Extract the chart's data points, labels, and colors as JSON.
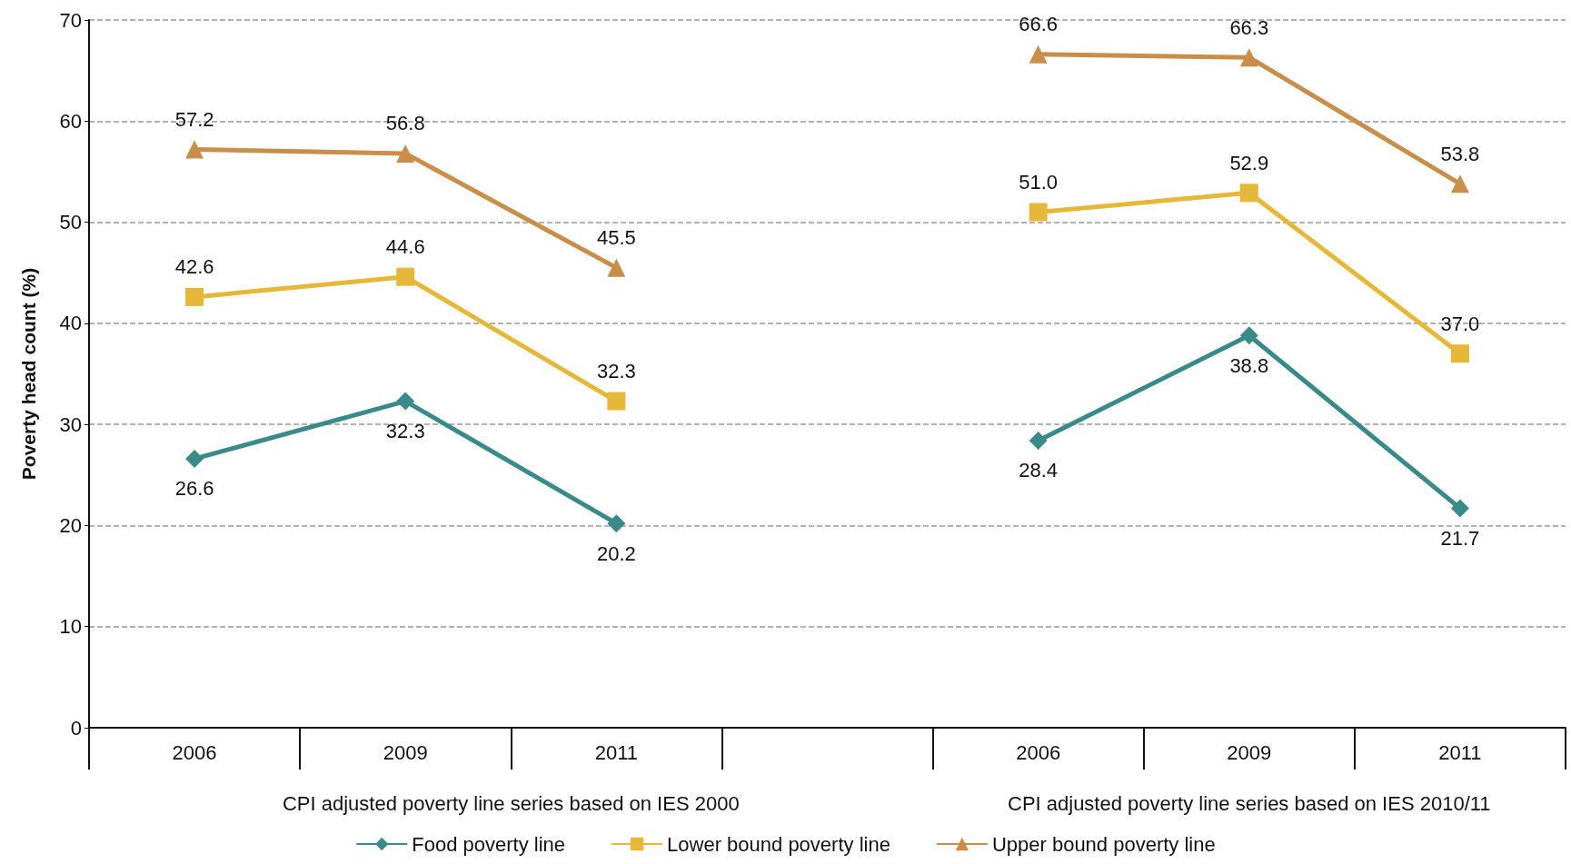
{
  "chart_data": {
    "type": "line",
    "ylabel": "Poverty head count (%)",
    "categories": [
      "2006",
      "2009",
      "2011",
      null,
      "2006",
      "2009",
      "2011"
    ],
    "series": [
      {
        "name": "Food poverty line",
        "color": "#3a8a8a",
        "marker": "diamond",
        "values": [
          26.6,
          32.3,
          20.2,
          null,
          28.4,
          38.8,
          21.7
        ],
        "value_labels": [
          "26.6",
          "32.3",
          "20.2",
          null,
          "28.4",
          "38.8",
          "21.7"
        ]
      },
      {
        "name": "Lower bound poverty line",
        "color": "#e6b83a",
        "marker": "square",
        "values": [
          42.6,
          44.6,
          32.3,
          null,
          51.0,
          52.9,
          37.0
        ],
        "value_labels": [
          "42.6",
          "44.6",
          "32.3",
          null,
          "51.0",
          "52.9",
          "37.0"
        ]
      },
      {
        "name": "Upper bound poverty line",
        "color": "#c98e4a",
        "marker": "triangle",
        "values": [
          57.2,
          56.8,
          45.5,
          null,
          66.6,
          66.3,
          53.8
        ],
        "value_labels": [
          "57.2",
          "56.8",
          "45.5",
          null,
          "66.6",
          "66.3",
          "53.8"
        ]
      }
    ],
    "annotations": [
      "CPI adjusted poverty line series based on IES 2000",
      "CPI adjusted poverty line series based on IES 2010/11"
    ],
    "ylim": [
      0,
      70
    ],
    "yticks": [
      0,
      10,
      20,
      30,
      40,
      50,
      60,
      70
    ],
    "grid": "y",
    "legend": "bottom"
  }
}
